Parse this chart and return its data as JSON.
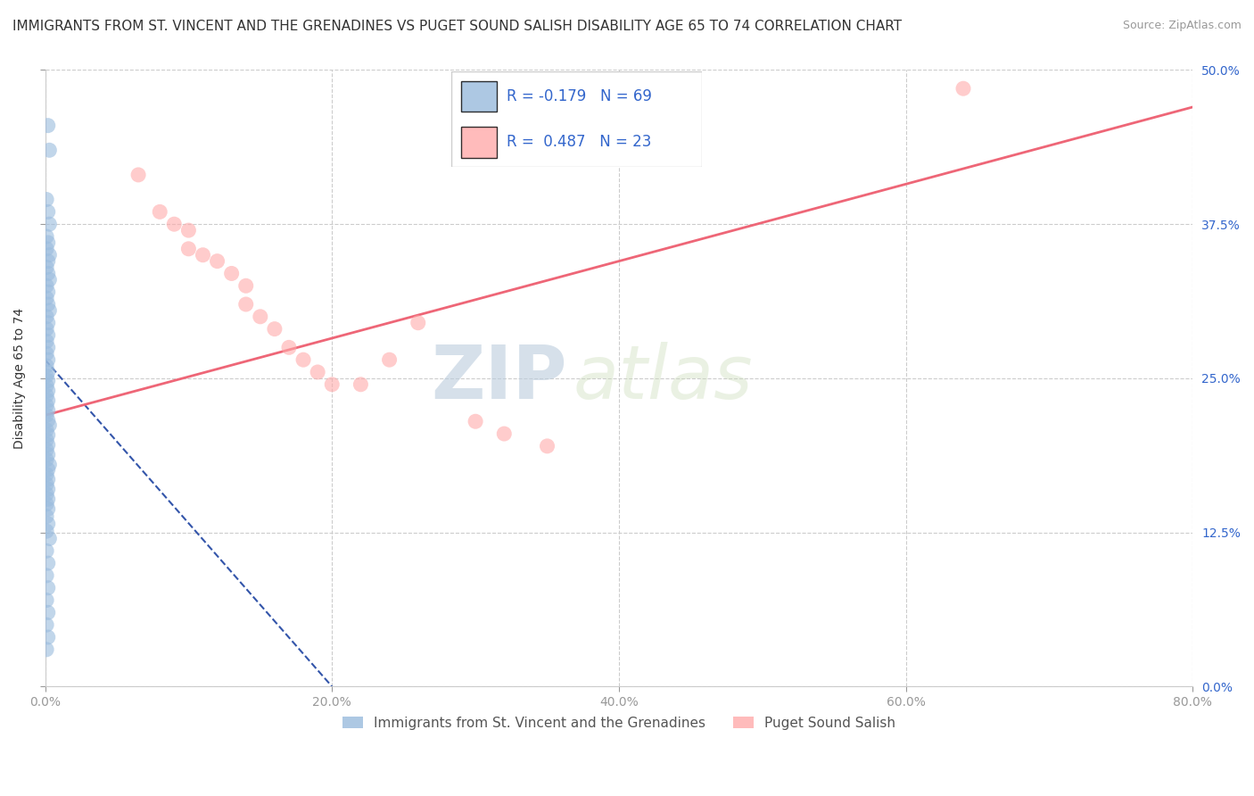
{
  "title": "IMMIGRANTS FROM ST. VINCENT AND THE GRENADINES VS PUGET SOUND SALISH DISABILITY AGE 65 TO 74 CORRELATION CHART",
  "source": "Source: ZipAtlas.com",
  "ylabel": "Disability Age 65 to 74",
  "watermark_zip": "ZIP",
  "watermark_atlas": "atlas",
  "legend1_label": "Immigrants from St. Vincent and the Grenadines",
  "legend2_label": "Puget Sound Salish",
  "r1": -0.179,
  "n1": 69,
  "r2": 0.487,
  "n2": 23,
  "xlim": [
    0.0,
    0.8
  ],
  "ylim": [
    0.0,
    0.5
  ],
  "xticks": [
    0.0,
    0.2,
    0.4,
    0.6,
    0.8
  ],
  "xticklabels": [
    "0.0%",
    "20.0%",
    "40.0%",
    "60.0%",
    "80.0%"
  ],
  "yticks": [
    0.0,
    0.125,
    0.25,
    0.375,
    0.5
  ],
  "yticklabels": [
    "0.0%",
    "12.5%",
    "25.0%",
    "37.5%",
    "50.0%"
  ],
  "blue_color": "#99BBDD",
  "pink_color": "#FFAAAA",
  "blue_line_color": "#3355AA",
  "pink_line_color": "#EE6677",
  "background_color": "#FFFFFF",
  "grid_color": "#CCCCCC",
  "title_fontsize": 11,
  "axis_label_fontsize": 10,
  "tick_fontsize": 10,
  "blue_scatter_x": [
    0.002,
    0.003,
    0.001,
    0.002,
    0.003,
    0.001,
    0.002,
    0.001,
    0.003,
    0.002,
    0.001,
    0.002,
    0.003,
    0.001,
    0.002,
    0.001,
    0.002,
    0.003,
    0.001,
    0.002,
    0.001,
    0.002,
    0.001,
    0.002,
    0.001,
    0.002,
    0.001,
    0.002,
    0.001,
    0.002,
    0.001,
    0.002,
    0.001,
    0.002,
    0.001,
    0.002,
    0.001,
    0.002,
    0.003,
    0.001,
    0.002,
    0.001,
    0.002,
    0.001,
    0.002,
    0.001,
    0.003,
    0.002,
    0.001,
    0.002,
    0.001,
    0.002,
    0.001,
    0.002,
    0.001,
    0.002,
    0.001,
    0.002,
    0.001,
    0.003,
    0.001,
    0.002,
    0.001,
    0.002,
    0.001,
    0.002,
    0.001,
    0.002,
    0.001
  ],
  "blue_scatter_y": [
    0.455,
    0.435,
    0.395,
    0.385,
    0.375,
    0.365,
    0.36,
    0.355,
    0.35,
    0.345,
    0.34,
    0.335,
    0.33,
    0.325,
    0.32,
    0.315,
    0.31,
    0.305,
    0.3,
    0.295,
    0.29,
    0.285,
    0.28,
    0.275,
    0.27,
    0.265,
    0.26,
    0.255,
    0.252,
    0.248,
    0.244,
    0.24,
    0.236,
    0.232,
    0.228,
    0.224,
    0.22,
    0.216,
    0.212,
    0.208,
    0.204,
    0.2,
    0.196,
    0.192,
    0.188,
    0.184,
    0.18,
    0.176,
    0.172,
    0.168,
    0.164,
    0.16,
    0.156,
    0.152,
    0.148,
    0.144,
    0.138,
    0.132,
    0.126,
    0.12,
    0.11,
    0.1,
    0.09,
    0.08,
    0.07,
    0.06,
    0.05,
    0.04,
    0.03
  ],
  "pink_scatter_x": [
    0.64,
    0.065,
    0.08,
    0.09,
    0.1,
    0.1,
    0.11,
    0.12,
    0.13,
    0.14,
    0.14,
    0.15,
    0.16,
    0.17,
    0.18,
    0.19,
    0.2,
    0.22,
    0.24,
    0.26,
    0.3,
    0.32,
    0.35
  ],
  "pink_scatter_y": [
    0.485,
    0.415,
    0.385,
    0.375,
    0.37,
    0.355,
    0.35,
    0.345,
    0.335,
    0.325,
    0.31,
    0.3,
    0.29,
    0.275,
    0.265,
    0.255,
    0.245,
    0.245,
    0.265,
    0.295,
    0.215,
    0.205,
    0.195
  ],
  "blue_line_x0": 0.0,
  "blue_line_y0": 0.265,
  "blue_line_x1": 0.2,
  "blue_line_y1": 0.0,
  "pink_line_x0": 0.0,
  "pink_line_y0": 0.22,
  "pink_line_x1": 0.8,
  "pink_line_y1": 0.47
}
